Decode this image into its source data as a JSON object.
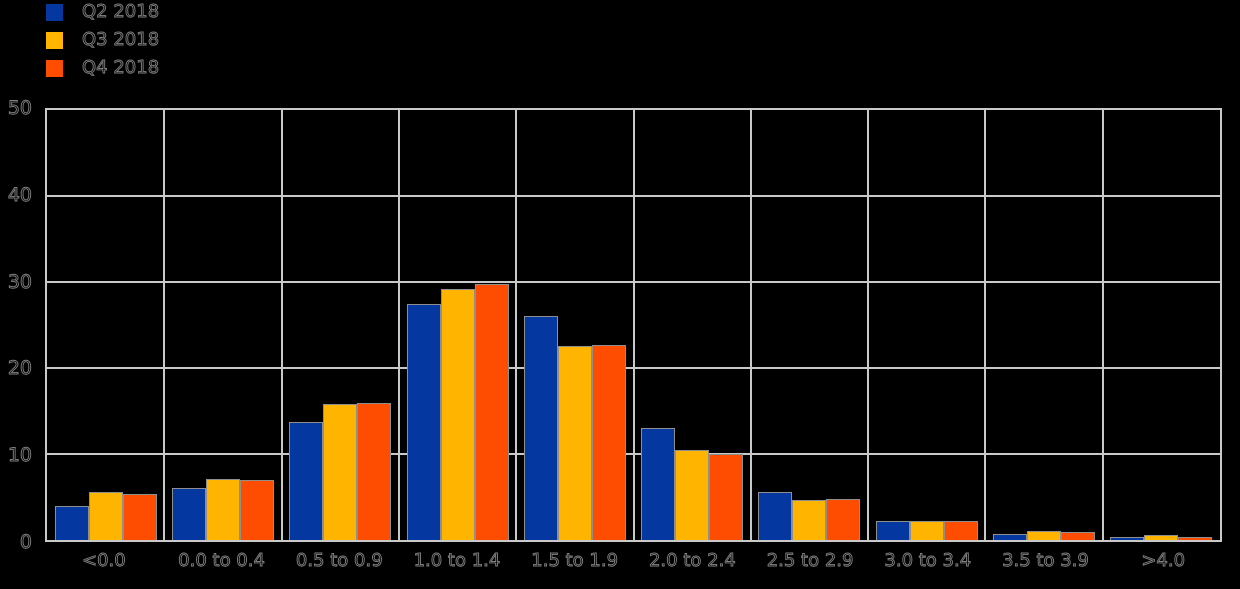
{
  "figure": {
    "background": "#000000",
    "gridline_color": "#C9C9C9",
    "bar_border_color": "#8F8F8F",
    "label_outline_color": "#828282"
  },
  "chart_data": {
    "type": "bar",
    "title": "",
    "xlabel": "",
    "ylabel": "",
    "categories": [
      "<0.0",
      "0.0 to 0.4",
      "0.5 to 0.9",
      "1.0 to 1.4",
      "1.5 to 1.9",
      "2.0 to 2.4",
      "2.5 to 2.9",
      "3.0 to 3.4",
      "3.5 to 3.9",
      ">4.0"
    ],
    "series": [
      {
        "name": "Q2 2018",
        "color": "#0438A0",
        "values": [
          4.0,
          6.0,
          13.7,
          27.5,
          26.0,
          13.0,
          5.6,
          2.2,
          0.7,
          0.4
        ]
      },
      {
        "name": "Q3 2018",
        "color": "#FFB400",
        "values": [
          5.6,
          7.1,
          15.8,
          29.2,
          22.6,
          10.5,
          4.7,
          2.2,
          1.0,
          0.6
        ]
      },
      {
        "name": "Q4 2018",
        "color": "#FF4D00",
        "values": [
          5.3,
          7.0,
          15.9,
          29.8,
          22.7,
          10.0,
          4.8,
          2.2,
          0.9,
          0.4
        ]
      }
    ],
    "ylim": [
      0,
      50
    ],
    "yticks": [
      0,
      10,
      20,
      30,
      40,
      50
    ],
    "grid": true,
    "legend_position": "top-left"
  }
}
